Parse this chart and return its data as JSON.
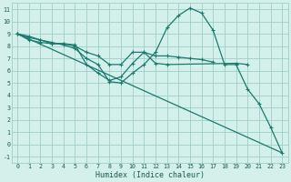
{
  "xlabel": "Humidex (Indice chaleur)",
  "bg_color": "#d4f0eb",
  "grid_color": "#9ecfc7",
  "line_color": "#1a7a6e",
  "xlim": [
    -0.5,
    23.5
  ],
  "ylim": [
    -1.5,
    11.5
  ],
  "xticks": [
    0,
    1,
    2,
    3,
    4,
    5,
    6,
    7,
    8,
    9,
    10,
    11,
    12,
    13,
    14,
    15,
    16,
    17,
    18,
    19,
    20,
    21,
    22,
    23
  ],
  "yticks": [
    -1,
    0,
    1,
    2,
    3,
    4,
    5,
    6,
    7,
    8,
    9,
    10,
    11
  ],
  "line_diagonal": {
    "x": [
      0,
      23
    ],
    "y": [
      9.0,
      -0.7
    ]
  },
  "line_humidex": {
    "x": [
      0,
      1,
      2,
      3,
      4,
      5,
      6,
      7,
      8,
      9,
      10,
      11,
      12,
      13,
      14,
      15,
      16,
      17,
      18,
      19,
      20,
      21,
      22,
      23
    ],
    "y": [
      9.0,
      8.7,
      8.5,
      8.3,
      8.1,
      7.8,
      7.0,
      6.5,
      5.1,
      5.0,
      5.8,
      6.5,
      7.5,
      9.5,
      10.5,
      11.1,
      10.7,
      9.3,
      6.5,
      6.5,
      4.5,
      3.3,
      1.4,
      -0.7
    ]
  },
  "line_mid": {
    "x": [
      0,
      1,
      2,
      3,
      4,
      5,
      6,
      7,
      8,
      9,
      10,
      11,
      12,
      13,
      14,
      15,
      16,
      17
    ],
    "y": [
      9.0,
      8.8,
      8.5,
      8.2,
      8.2,
      8.0,
      7.5,
      7.2,
      6.5,
      6.5,
      7.5,
      7.5,
      7.2,
      7.2,
      7.1,
      7.0,
      6.9,
      6.7
    ]
  },
  "line_dip": {
    "x": [
      0,
      1,
      2,
      3,
      4,
      5,
      6,
      7,
      8,
      9,
      10,
      11,
      12,
      13,
      19,
      20
    ],
    "y": [
      9.0,
      8.5,
      8.3,
      8.2,
      8.2,
      8.1,
      6.5,
      5.8,
      5.2,
      5.5,
      6.6,
      7.5,
      6.6,
      6.5,
      6.6,
      6.5
    ]
  }
}
